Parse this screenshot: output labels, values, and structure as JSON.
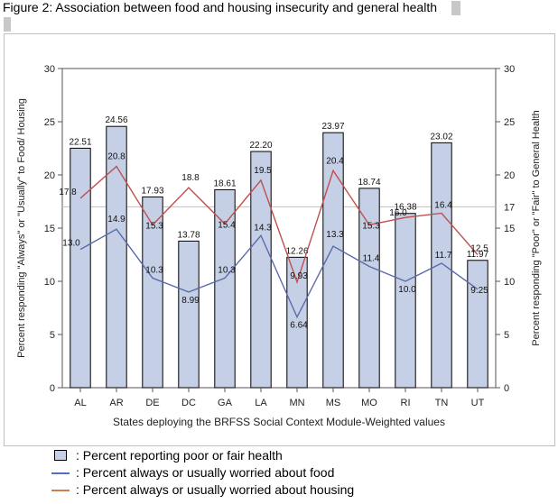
{
  "figure_title": "Figure 2:  Association between food and housing insecurity and general health",
  "legend": {
    "health": ": Percent reporting poor or fair health",
    "food": ": Percent always or usually worried about food",
    "housing": ": Percent always or usually worried about housing"
  },
  "colors": {
    "bar_fill": "#c5cfe5",
    "food_line": "#5a6bab",
    "housing_line": "#c0504d",
    "ref_line": "#c0c0c0"
  },
  "chart_data": {
    "type": "bar",
    "categories": [
      "AL",
      "AR",
      "DE",
      "DC",
      "GA",
      "LA",
      "MN",
      "MS",
      "MO",
      "RI",
      "TN",
      "UT"
    ],
    "series": [
      {
        "name": "Percent reporting poor or fair health",
        "kind": "bar",
        "values": [
          22.51,
          24.56,
          17.93,
          13.78,
          18.61,
          22.2,
          12.26,
          23.97,
          18.74,
          16.38,
          23.02,
          11.97
        ],
        "labels": [
          "22.51",
          "24.56",
          "17.93",
          "13.78",
          "18.61",
          "22.20",
          "12.26",
          "23.97",
          "18.74",
          "16.38",
          "23.02",
          "11.97"
        ]
      },
      {
        "name": "Percent always or usually worried about food",
        "kind": "line",
        "values": [
          13.0,
          14.9,
          10.3,
          8.99,
          10.3,
          14.3,
          6.64,
          13.3,
          11.4,
          10.0,
          11.7,
          9.25
        ],
        "labels": [
          "13.0",
          "14.9",
          "10.3",
          "8.99",
          "10.3",
          "14.3",
          "6.64",
          "13.3",
          "11.4",
          "10.0",
          "11.7",
          "9.25"
        ]
      },
      {
        "name": "Percent always or usually worried about housing",
        "kind": "line",
        "values": [
          17.8,
          20.8,
          15.3,
          18.8,
          15.4,
          19.5,
          9.93,
          20.4,
          15.3,
          16.0,
          16.4,
          12.5
        ],
        "labels": [
          "17.8",
          "20.8",
          "15.3",
          "18.8",
          "15.4",
          "19.5",
          "9.93",
          "20.4",
          "15.3",
          "16.0",
          "16.4",
          "12.5"
        ]
      }
    ],
    "reference_line": {
      "value": 17,
      "label": "17"
    },
    "xlabel": "States deploying the BRFSS Social Context Module-Weighted values",
    "ylabel": "Percent responding \"Always\" or \"Usually\" to Food/ Housing",
    "y2label": "Percent responding \"Poor\" or \"Fair\" to General Health",
    "ylim": [
      0,
      30
    ],
    "yticks": [
      0,
      5,
      10,
      15,
      20,
      25,
      30
    ],
    "ytick_labels": [
      "0",
      "5",
      "10",
      "15",
      "20",
      "25",
      "30"
    ],
    "grid": false
  }
}
